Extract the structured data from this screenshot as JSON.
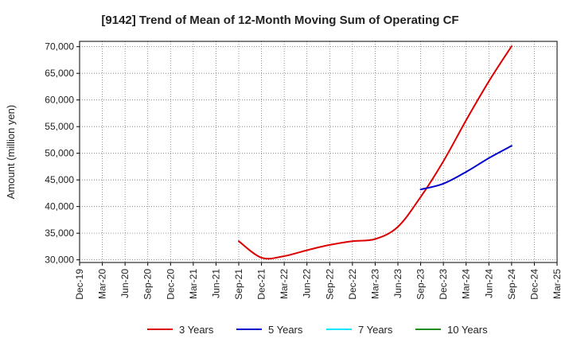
{
  "chart_data": {
    "type": "line",
    "title": "[9142]  Trend of Mean of 12-Month Moving Sum of Operating CF",
    "xlabel": "",
    "ylabel": "Amount (million yen)",
    "ylim": [
      29500,
      71000
    ],
    "yticks": [
      30000,
      35000,
      40000,
      45000,
      50000,
      55000,
      60000,
      65000,
      70000
    ],
    "ytick_labels": [
      "30,000",
      "35,000",
      "40,000",
      "45,000",
      "50,000",
      "55,000",
      "60,000",
      "65,000",
      "70,000"
    ],
    "xtick_labels": [
      "Dec-19",
      "Mar-20",
      "Jun-20",
      "Sep-20",
      "Dec-20",
      "Mar-21",
      "Jun-21",
      "Sep-21",
      "Dec-21",
      "Mar-22",
      "Jun-22",
      "Sep-22",
      "Dec-22",
      "Mar-23",
      "Jun-23",
      "Sep-23",
      "Dec-23",
      "Mar-24",
      "Jun-24",
      "Sep-24",
      "Dec-24",
      "Mar-25"
    ],
    "grid": true,
    "legend_position": "bottom",
    "series": [
      {
        "name": "3 Years",
        "color": "#dd0000",
        "x": [
          "Sep-21",
          "Dec-21",
          "Mar-22",
          "Jun-22",
          "Sep-22",
          "Dec-22",
          "Mar-23",
          "Jun-23",
          "Sep-23",
          "Dec-23",
          "Mar-24",
          "Jun-24",
          "Sep-24"
        ],
        "values": [
          33500,
          30400,
          30700,
          31800,
          32800,
          33500,
          33900,
          36200,
          41800,
          48500,
          56200,
          63500,
          70100
        ]
      },
      {
        "name": "5 Years",
        "color": "#0000cc",
        "x": [
          "Sep-23",
          "Dec-23",
          "Mar-24",
          "Jun-24",
          "Sep-24"
        ],
        "values": [
          43200,
          44300,
          46500,
          49100,
          51400
        ]
      },
      {
        "name": "7 Years",
        "color": "#00e5ff",
        "x": [],
        "values": []
      },
      {
        "name": "10 Years",
        "color": "#228b22",
        "x": [],
        "values": []
      }
    ]
  }
}
